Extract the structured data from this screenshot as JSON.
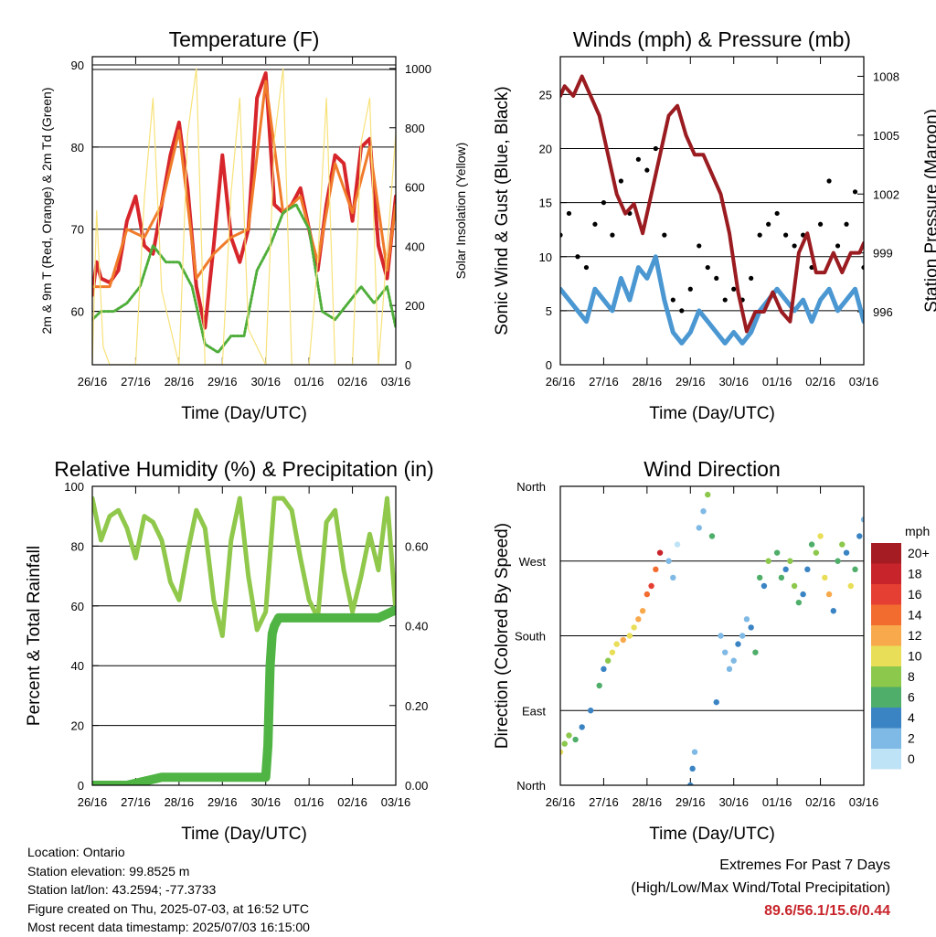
{
  "info": {
    "location": "Location: Ontario",
    "elevation": "Station elevation: 99.8525 m",
    "latlon": "Station lat/lon: 43.2594; -77.3733",
    "created": "Figure created on Thu, 2025-07-03, at 16:52 UTC",
    "timestamp": "Most recent data timestamp: 2025/07/03 16:15:00"
  },
  "extremes": {
    "title": "Extremes For Past 7 Days",
    "subtitle": "(High/Low/Max Wind/Total Precipitation)",
    "values": "89.6/56.1/15.6/0.44"
  },
  "colors": {
    "temp2m": "#d7262b",
    "temp9m": "#f07b2a",
    "dewpoint": "#4fae3a",
    "solar": "#f7e27a",
    "wind": "#4a97d2",
    "gust": "#000000",
    "pressure": "#9a1b20",
    "rh": "#8fc84b",
    "precip": "#4fb443"
  },
  "chart_data": [
    {
      "type": "line",
      "title": "Temperature (F)",
      "xlabel": "Time (Day/UTC)",
      "ylabel": "2m & 9m T (Red, Orange) & 2m Td (Green)",
      "y2label": "Solar Insolation (Yellow)",
      "x_ticks": [
        "26/16",
        "27/16",
        "28/16",
        "29/16",
        "30/16",
        "01/16",
        "02/16",
        "03/16"
      ],
      "xlim": [
        0,
        7
      ],
      "ylim": [
        53.5,
        91
      ],
      "y_ticks": [
        60,
        70,
        80,
        90
      ],
      "y2lim": [
        0,
        1040
      ],
      "y2_ticks": [
        0,
        200,
        400,
        600,
        800,
        1000
      ],
      "series": [
        {
          "key": "temp2m",
          "x": [
            0,
            0.1,
            0.2,
            0.4,
            0.6,
            0.8,
            1.0,
            1.2,
            1.4,
            1.6,
            1.8,
            2.0,
            2.2,
            2.4,
            2.6,
            2.8,
            3.0,
            3.2,
            3.4,
            3.6,
            3.8,
            4.0,
            4.2,
            4.4,
            4.6,
            4.8,
            5.0,
            5.2,
            5.4,
            5.6,
            5.8,
            6.0,
            6.2,
            6.4,
            6.6,
            6.8,
            7.0
          ],
          "y": [
            62,
            66,
            64,
            63.5,
            65,
            71,
            74,
            68,
            67,
            73,
            79,
            83,
            75,
            63,
            58,
            68,
            79,
            69,
            66,
            70,
            86,
            89,
            73,
            72,
            73,
            75,
            70,
            65,
            73,
            79,
            78,
            71,
            80,
            81,
            68,
            64,
            74
          ]
        },
        {
          "key": "temp9m",
          "x": [
            0,
            0.4,
            0.8,
            1.2,
            1.6,
            2.0,
            2.4,
            2.8,
            3.2,
            3.6,
            4.0,
            4.4,
            4.8,
            5.2,
            5.6,
            6.0,
            6.4,
            6.8,
            7.0
          ],
          "y": [
            63,
            63,
            70,
            69,
            73,
            82,
            64,
            67,
            69,
            70,
            88,
            72,
            74,
            66,
            78,
            72,
            80,
            65,
            73
          ]
        },
        {
          "key": "dewpoint",
          "x": [
            0,
            0.2,
            0.5,
            0.8,
            1.1,
            1.4,
            1.7,
            2.0,
            2.3,
            2.6,
            2.9,
            3.2,
            3.5,
            3.8,
            4.1,
            4.4,
            4.7,
            5.0,
            5.3,
            5.6,
            5.9,
            6.2,
            6.5,
            6.8,
            7.0
          ],
          "y": [
            59,
            60,
            60,
            61,
            63,
            68,
            66,
            66,
            63,
            56,
            55,
            57,
            57,
            65,
            68,
            72,
            73,
            70,
            60,
            59,
            61,
            63,
            61,
            63,
            58
          ]
        },
        {
          "key": "solar",
          "x": [
            0,
            0.1,
            0.25,
            0.4,
            1.0,
            1.2,
            1.4,
            1.6,
            2.0,
            2.2,
            2.4,
            2.6,
            3.0,
            3.2,
            3.4,
            3.6,
            4.0,
            4.2,
            4.4,
            4.6,
            5.0,
            5.2,
            5.4,
            5.6,
            6.0,
            6.2,
            6.4,
            6.6,
            7.0
          ],
          "y": [
            0,
            520,
            60,
            0,
            0,
            560,
            900,
            250,
            0,
            780,
            1000,
            0,
            0,
            580,
            900,
            120,
            0,
            760,
            1000,
            0,
            0,
            350,
            900,
            0,
            0,
            750,
            900,
            0,
            780
          ]
        }
      ]
    },
    {
      "type": "scatter",
      "title": "Winds (mph) & Pressure (mb)",
      "xlabel": "Time (Day/UTC)",
      "ylabel": "Sonic Wind & Gust (Blue, Black)",
      "y2label": "Station Pressure (Maroon)",
      "x_ticks": [
        "26/16",
        "27/16",
        "28/16",
        "29/16",
        "30/16",
        "01/16",
        "02/16",
        "03/16"
      ],
      "xlim": [
        0,
        7
      ],
      "ylim": [
        0,
        28.5
      ],
      "y_ticks": [
        0,
        5,
        10,
        15,
        20,
        25
      ],
      "y2lim": [
        993.3,
        1009
      ],
      "y2_ticks": [
        996,
        999,
        1002,
        1005,
        1008
      ],
      "series": [
        {
          "key": "wind",
          "x": [
            0,
            0.2,
            0.4,
            0.6,
            0.8,
            1.0,
            1.2,
            1.4,
            1.6,
            1.8,
            2.0,
            2.2,
            2.4,
            2.6,
            2.8,
            3.0,
            3.2,
            3.4,
            3.6,
            3.8,
            4.0,
            4.2,
            4.4,
            4.6,
            4.8,
            5.0,
            5.2,
            5.4,
            5.6,
            5.8,
            6.0,
            6.2,
            6.4,
            6.6,
            6.8,
            7.0
          ],
          "y": [
            7,
            6,
            5,
            4,
            7,
            6,
            5,
            8,
            6,
            9,
            8,
            10,
            6,
            3,
            2,
            3,
            5,
            4,
            3,
            2,
            3,
            2,
            3,
            5,
            6,
            7,
            6,
            5,
            6,
            4,
            6,
            7,
            5,
            6,
            7,
            4
          ]
        },
        {
          "key": "gust",
          "x": [
            0,
            0.2,
            0.4,
            0.6,
            0.8,
            1.0,
            1.2,
            1.4,
            1.6,
            1.8,
            2.0,
            2.2,
            2.4,
            2.6,
            2.8,
            3.0,
            3.2,
            3.4,
            3.6,
            3.8,
            4.0,
            4.2,
            4.4,
            4.6,
            4.8,
            5.0,
            5.2,
            5.4,
            5.6,
            5.8,
            6.0,
            6.2,
            6.4,
            6.6,
            6.8,
            7.0
          ],
          "y": [
            12,
            14,
            10,
            9,
            13,
            15,
            12,
            17,
            14,
            19,
            18,
            20,
            12,
            6,
            5,
            7,
            11,
            9,
            8,
            6,
            7,
            6,
            8,
            12,
            13,
            14,
            12,
            11,
            12,
            9,
            13,
            17,
            11,
            13,
            16,
            9
          ]
        },
        {
          "key": "pressure",
          "x": [
            0,
            0.1,
            0.3,
            0.5,
            0.7,
            0.9,
            1.1,
            1.3,
            1.5,
            1.7,
            1.9,
            2.1,
            2.3,
            2.5,
            2.7,
            2.9,
            3.1,
            3.3,
            3.5,
            3.7,
            3.9,
            4.1,
            4.3,
            4.5,
            4.7,
            4.9,
            5.1,
            5.3,
            5.5,
            5.7,
            5.9,
            6.1,
            6.3,
            6.5,
            6.7,
            6.9,
            7.0
          ],
          "y": [
            1007,
            1007.5,
            1007,
            1008,
            1007,
            1006,
            1004,
            1002,
            1001,
            1001.5,
            1000,
            1002,
            1004,
            1006,
            1006.5,
            1005,
            1004,
            1004,
            1003,
            1002,
            1000,
            997,
            995,
            996,
            996,
            997,
            996,
            995.5,
            999,
            1000,
            998,
            998,
            999,
            998,
            999,
            999,
            999.5
          ]
        }
      ]
    },
    {
      "type": "line",
      "title": "Relative Humidity (%) & Precipitation (in)",
      "xlabel": "Time (Day/UTC)",
      "ylabel": "Percent & Total Rainfall",
      "x_ticks": [
        "26/16",
        "27/16",
        "28/16",
        "29/16",
        "30/16",
        "01/16",
        "02/16",
        "03/16"
      ],
      "xlim": [
        0,
        7
      ],
      "ylim": [
        0,
        100
      ],
      "y_ticks": [
        0,
        20,
        40,
        60,
        80,
        100
      ],
      "y2lim": [
        0,
        0.75
      ],
      "y2_ticks": [
        "0.00",
        "0.20",
        "0.40",
        "0.60"
      ],
      "series": [
        {
          "key": "rh",
          "x": [
            0,
            0.2,
            0.4,
            0.6,
            0.8,
            1.0,
            1.2,
            1.4,
            1.6,
            1.8,
            2.0,
            2.2,
            2.4,
            2.6,
            2.8,
            3.0,
            3.2,
            3.4,
            3.6,
            3.8,
            4.0,
            4.2,
            4.4,
            4.6,
            4.8,
            5.0,
            5.2,
            5.4,
            5.6,
            5.8,
            6.0,
            6.2,
            6.4,
            6.6,
            6.8,
            7.0
          ],
          "y": [
            96,
            82,
            90,
            92,
            86,
            76,
            90,
            88,
            82,
            68,
            62,
            78,
            92,
            86,
            62,
            50,
            82,
            96,
            70,
            52,
            58,
            96,
            96,
            92,
            76,
            62,
            56,
            88,
            92,
            72,
            58,
            70,
            84,
            72,
            96,
            58
          ]
        },
        {
          "key": "precip",
          "x": [
            0,
            0.8,
            1.6,
            2.4,
            3.2,
            3.8,
            4.0,
            4.05,
            4.1,
            4.15,
            4.2,
            4.3,
            5.0,
            5.8,
            6.6,
            7.0
          ],
          "y": [
            0,
            0,
            0.02,
            0.02,
            0.02,
            0.02,
            0.02,
            0.1,
            0.3,
            0.38,
            0.4,
            0.42,
            0.42,
            0.42,
            0.42,
            0.44
          ]
        }
      ]
    },
    {
      "type": "scatter",
      "title": "Wind Direction",
      "xlabel": "Time (Day/UTC)",
      "ylabel": "Direction (Colored By Speed)",
      "x_ticks": [
        "26/16",
        "27/16",
        "28/16",
        "29/16",
        "30/16",
        "01/16",
        "02/16",
        "03/16"
      ],
      "xlim": [
        0,
        7
      ],
      "ylim": [
        0,
        360
      ],
      "y_ticks": [
        "North",
        "East",
        "South",
        "West",
        "North"
      ],
      "legend_title": "mph",
      "legend_labels": [
        "20+",
        "18",
        "16",
        "14",
        "12",
        "10",
        "8",
        "6",
        "4",
        "2",
        "0"
      ],
      "legend_colors": [
        "#a51c22",
        "#c8242b",
        "#e53e32",
        "#f26c30",
        "#f8a94c",
        "#e9de57",
        "#8cc84b",
        "#4fae6a",
        "#3b84c4",
        "#7fb9e5",
        "#bfe3f6"
      ],
      "points": {
        "x": [
          0.0,
          0.1,
          0.2,
          0.35,
          0.5,
          0.7,
          0.9,
          1.0,
          1.1,
          1.2,
          1.3,
          1.45,
          1.6,
          1.7,
          1.8,
          1.9,
          2.0,
          2.1,
          2.2,
          2.3,
          2.5,
          2.6,
          2.7,
          3.0,
          3.05,
          3.1,
          3.2,
          3.3,
          3.4,
          3.5,
          3.6,
          3.7,
          3.8,
          3.9,
          4.0,
          4.1,
          4.2,
          4.3,
          4.4,
          4.5,
          4.6,
          4.7,
          4.8,
          5.0,
          5.1,
          5.2,
          5.3,
          5.4,
          5.5,
          5.6,
          5.7,
          5.8,
          5.9,
          6.0,
          6.1,
          6.2,
          6.3,
          6.4,
          6.5,
          6.6,
          6.7,
          6.8,
          6.9,
          7.0
        ],
        "y": [
          40,
          50,
          60,
          55,
          70,
          90,
          120,
          140,
          150,
          160,
          170,
          175,
          180,
          190,
          200,
          210,
          230,
          240,
          260,
          280,
          270,
          250,
          290,
          0,
          20,
          40,
          310,
          330,
          350,
          300,
          100,
          180,
          160,
          140,
          150,
          170,
          180,
          200,
          190,
          160,
          250,
          240,
          270,
          280,
          250,
          260,
          270,
          240,
          220,
          230,
          260,
          290,
          280,
          300,
          250,
          230,
          210,
          270,
          290,
          280,
          240,
          260,
          300,
          320
        ],
        "speed": [
          10,
          9,
          8,
          6,
          5,
          4,
          6,
          5,
          8,
          10,
          11,
          12,
          11,
          10,
          12,
          13,
          14,
          16,
          15,
          18,
          3,
          2,
          1,
          4,
          5,
          3,
          2,
          3,
          8,
          6,
          4,
          3,
          2,
          2,
          3,
          4,
          2,
          3,
          5,
          7,
          6,
          5,
          8,
          7,
          6,
          5,
          9,
          8,
          6,
          4,
          5,
          7,
          9,
          10,
          11,
          12,
          4,
          6,
          8,
          5,
          10,
          7,
          4,
          3
        ]
      }
    }
  ]
}
